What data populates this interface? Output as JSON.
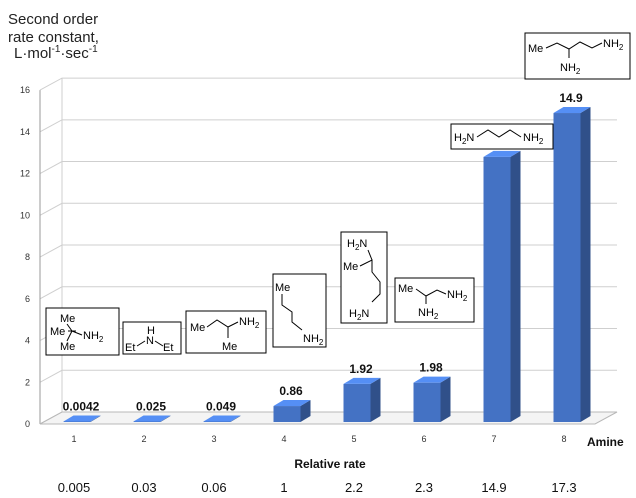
{
  "chart_data": {
    "type": "bar",
    "title": "",
    "ylabel": [
      "Second order",
      "rate constant,",
      "L·mol-1·sec-1"
    ],
    "xlabel": "Amine",
    "ylim": [
      0,
      16
    ],
    "yticks": [
      0,
      2,
      4,
      6,
      8,
      10,
      12,
      14,
      16
    ],
    "grid": true,
    "categories": [
      "1",
      "2",
      "3",
      "4",
      "5",
      "6",
      "7",
      "8"
    ],
    "values": [
      0.0042,
      0.025,
      0.049,
      0.86,
      1.92,
      1.98,
      12.8,
      14.9
    ],
    "value_labels": [
      "0.0042",
      "0.025",
      "0.049",
      "0.86",
      "1.92",
      "1.98",
      "12.8",
      "14.9"
    ],
    "relative_rate_title": "Relative rate",
    "relative_rates": [
      "0.005",
      "0.03",
      "0.06",
      "1",
      "2.2",
      "2.3",
      "14.9",
      "17.3"
    ],
    "bar_color": "#4472C4",
    "structures": [
      "tert-butylamine",
      "diethylamine",
      "sec-butylamine",
      "n-butylamine",
      "1,4-diaminopentane",
      "1,2-diaminopropane",
      "1,3-diaminopropane",
      "1,3-diaminopentane"
    ],
    "structure_labels": {
      "me": "Me",
      "et": "Et",
      "nh2": "NH2",
      "h2n": "H2N",
      "h": "H",
      "n": "N"
    }
  }
}
